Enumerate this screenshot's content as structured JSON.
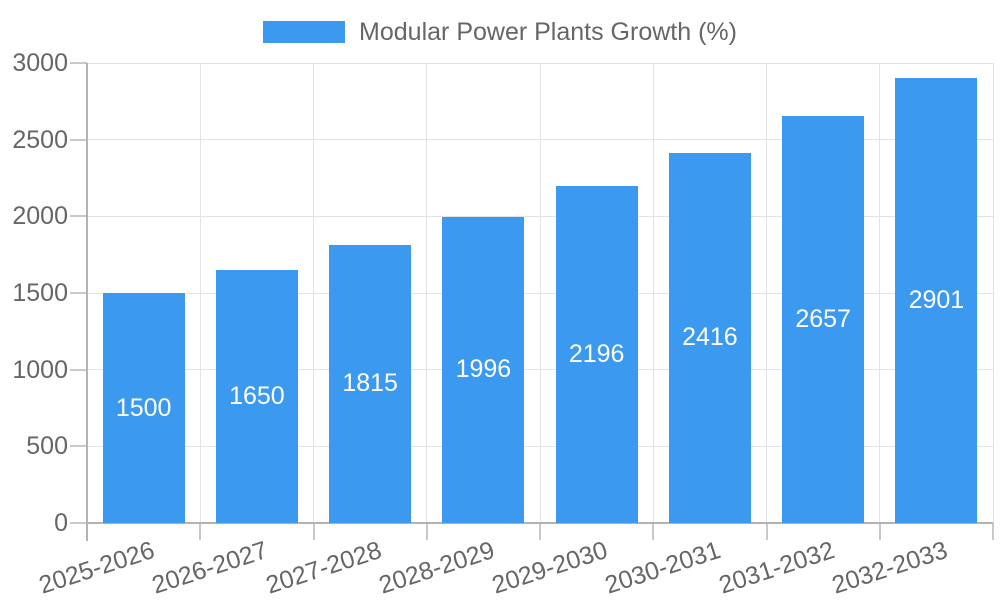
{
  "legend": {
    "label": "Modular Power Plants Growth (%)"
  },
  "colors": {
    "bar": "#3b99f0",
    "text": "#666666",
    "grid": "#e3e3e3",
    "axis": "#b3b3b3",
    "tick": "#c9c9c9",
    "bar_label": "#ffffff",
    "background": "#ffffff"
  },
  "chart_data": {
    "type": "bar",
    "title": "Modular Power Plants Growth (%)",
    "categories": [
      "2025-2026",
      "2026-2027",
      "2027-2028",
      "2028-2029",
      "2029-2030",
      "2030-2031",
      "2031-2032",
      "2032-2033"
    ],
    "values": [
      1500,
      1650,
      1815,
      1996,
      2196,
      2416,
      2657,
      2901
    ],
    "value_labels": [
      "1500",
      "1650",
      "1815",
      "1996",
      "2196",
      "2416",
      "2657",
      "2901"
    ],
    "xlabel": "",
    "ylabel": "",
    "ylim": [
      0,
      3000
    ],
    "yticks": [
      0,
      500,
      1000,
      1500,
      2000,
      2500,
      3000
    ],
    "ytick_labels": [
      "0",
      "500",
      "1000",
      "1500",
      "2000",
      "2500",
      "3000"
    ],
    "grid": true,
    "legend_position": "top",
    "bar_value_labels": "centered-white",
    "x_tick_rotation_deg": -18
  }
}
